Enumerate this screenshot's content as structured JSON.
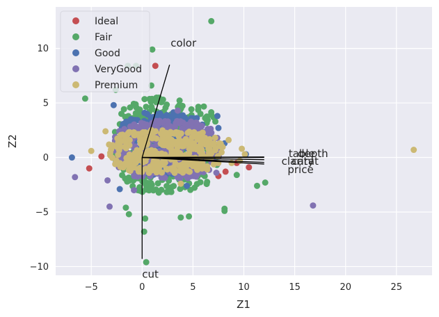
{
  "chart_data": {
    "type": "scatter",
    "title": "",
    "xlabel": "Z1",
    "ylabel": "Z2",
    "xlim": [
      -8.5,
      28.5
    ],
    "ylim": [
      -10.8,
      13.8
    ],
    "xticks": [
      -5,
      0,
      5,
      10,
      15,
      20,
      25
    ],
    "yticks": [
      -10,
      -5,
      0,
      5,
      10
    ],
    "xtick_labels": [
      "−5",
      "0",
      "5",
      "10",
      "15",
      "20",
      "25"
    ],
    "ytick_labels": [
      "−10",
      "−5",
      "0",
      "5",
      "10"
    ],
    "grid": true,
    "legend_position": "top-left",
    "background": "#eaeaf2",
    "series": [
      {
        "name": "Ideal",
        "color": "#c44e52",
        "points": [
          [
            -5.2,
            -1.0
          ],
          [
            -4.0,
            0.1
          ],
          [
            1.3,
            8.4
          ],
          [
            8.2,
            -1.3
          ],
          [
            9.3,
            -0.5
          ],
          [
            10.5,
            -0.9
          ],
          [
            7.5,
            -1.7
          ]
        ]
      },
      {
        "name": "Fair",
        "color": "#55a868",
        "cloud": {
          "x": [
            -2.8,
            7.6
          ],
          "y": [
            -5.2,
            7.4
          ],
          "cx": 2.1,
          "cy": 0.6,
          "seed": 11
        },
        "points": [
          [
            6.8,
            12.5
          ],
          [
            1.0,
            9.9
          ],
          [
            -5.6,
            5.4
          ],
          [
            0.2,
            -6.8
          ],
          [
            0.4,
            -9.6
          ],
          [
            11.3,
            -2.6
          ],
          [
            12.1,
            -2.3
          ],
          [
            8.1,
            -4.7
          ],
          [
            8.1,
            -4.9
          ],
          [
            6.8,
            3.9
          ],
          [
            7.2,
            3.3
          ],
          [
            -0.6,
            8.4
          ],
          [
            -1.4,
            8.4
          ],
          [
            -2.6,
            6.2
          ],
          [
            3.8,
            -5.5
          ],
          [
            4.6,
            -5.4
          ],
          [
            0.3,
            -5.6
          ],
          [
            -1.6,
            -4.6
          ],
          [
            -1.3,
            -5.2
          ],
          [
            9.3,
            -1.6
          ],
          [
            0.9,
            6.6
          ]
        ]
      },
      {
        "name": "Good",
        "color": "#4c72b0",
        "cloud": {
          "x": [
            -2.5,
            6.5
          ],
          "y": [
            -2.9,
            5.4
          ],
          "cx": 1.7,
          "cy": 1.0,
          "seed": 23
        },
        "points": [
          [
            -6.9,
            0.0
          ],
          [
            7.4,
            3.8
          ],
          [
            7.5,
            2.7
          ],
          [
            8.1,
            1.3
          ],
          [
            10.2,
            0.3
          ],
          [
            -2.8,
            4.8
          ],
          [
            -2.2,
            -2.9
          ],
          [
            4.4,
            -2.6
          ]
        ]
      },
      {
        "name": "VeryGood",
        "color": "#8172b2",
        "cloud": {
          "x": [
            -3.0,
            7.8
          ],
          "y": [
            -3.1,
            4.5
          ],
          "cx": 1.9,
          "cy": 0.4,
          "seed": 37
        },
        "points": [
          [
            -6.6,
            -1.8
          ],
          [
            -3.2,
            -4.5
          ],
          [
            16.8,
            -4.4
          ],
          [
            -3.4,
            -2.1
          ],
          [
            7.3,
            -1.4
          ],
          [
            3.5,
            4.3
          ],
          [
            -0.8,
            -3.0
          ]
        ]
      },
      {
        "name": "Premium",
        "color": "#ccb974",
        "cloud": {
          "x": [
            -3.4,
            8.0
          ],
          "y": [
            -2.3,
            3.4
          ],
          "cx": 1.9,
          "cy": 0.5,
          "seed": 53
        },
        "points": [
          [
            26.7,
            0.7
          ],
          [
            -5.0,
            0.6
          ],
          [
            9.8,
            0.8
          ],
          [
            9.6,
            -0.3
          ],
          [
            8.8,
            -0.5
          ],
          [
            7.6,
            1.3
          ],
          [
            10.1,
            0.3
          ],
          [
            8.5,
            1.6
          ],
          [
            -3.6,
            2.4
          ],
          [
            3.8,
            -2.4
          ]
        ]
      }
    ],
    "loadings": [
      {
        "label": "color",
        "end": [
          2.7,
          8.5
        ],
        "label_pos": [
          2.8,
          10.5
        ],
        "anchor": "start"
      },
      {
        "label": "cut",
        "end": [
          0.0,
          -9.3
        ],
        "label_pos": [
          0.0,
          -10.7
        ],
        "anchor": "start"
      },
      {
        "label": "table",
        "end": [
          12.0,
          0.05
        ],
        "label_pos": [
          14.4,
          0.35
        ],
        "anchor": "start"
      },
      {
        "label": "depth",
        "end": [
          12.0,
          0.0
        ],
        "label_pos": [
          15.3,
          0.35
        ],
        "anchor": "start"
      },
      {
        "label": "carat",
        "end": [
          12.0,
          -0.2
        ],
        "label_pos": [
          14.7,
          -0.35
        ],
        "anchor": "start"
      },
      {
        "label": "clarity",
        "end": [
          12.0,
          -0.45
        ],
        "label_pos": [
          13.7,
          -0.35
        ],
        "anchor": "start"
      },
      {
        "label": "price",
        "end": [
          12.0,
          -0.6
        ],
        "label_pos": [
          14.3,
          -1.1
        ],
        "anchor": "start"
      }
    ]
  }
}
